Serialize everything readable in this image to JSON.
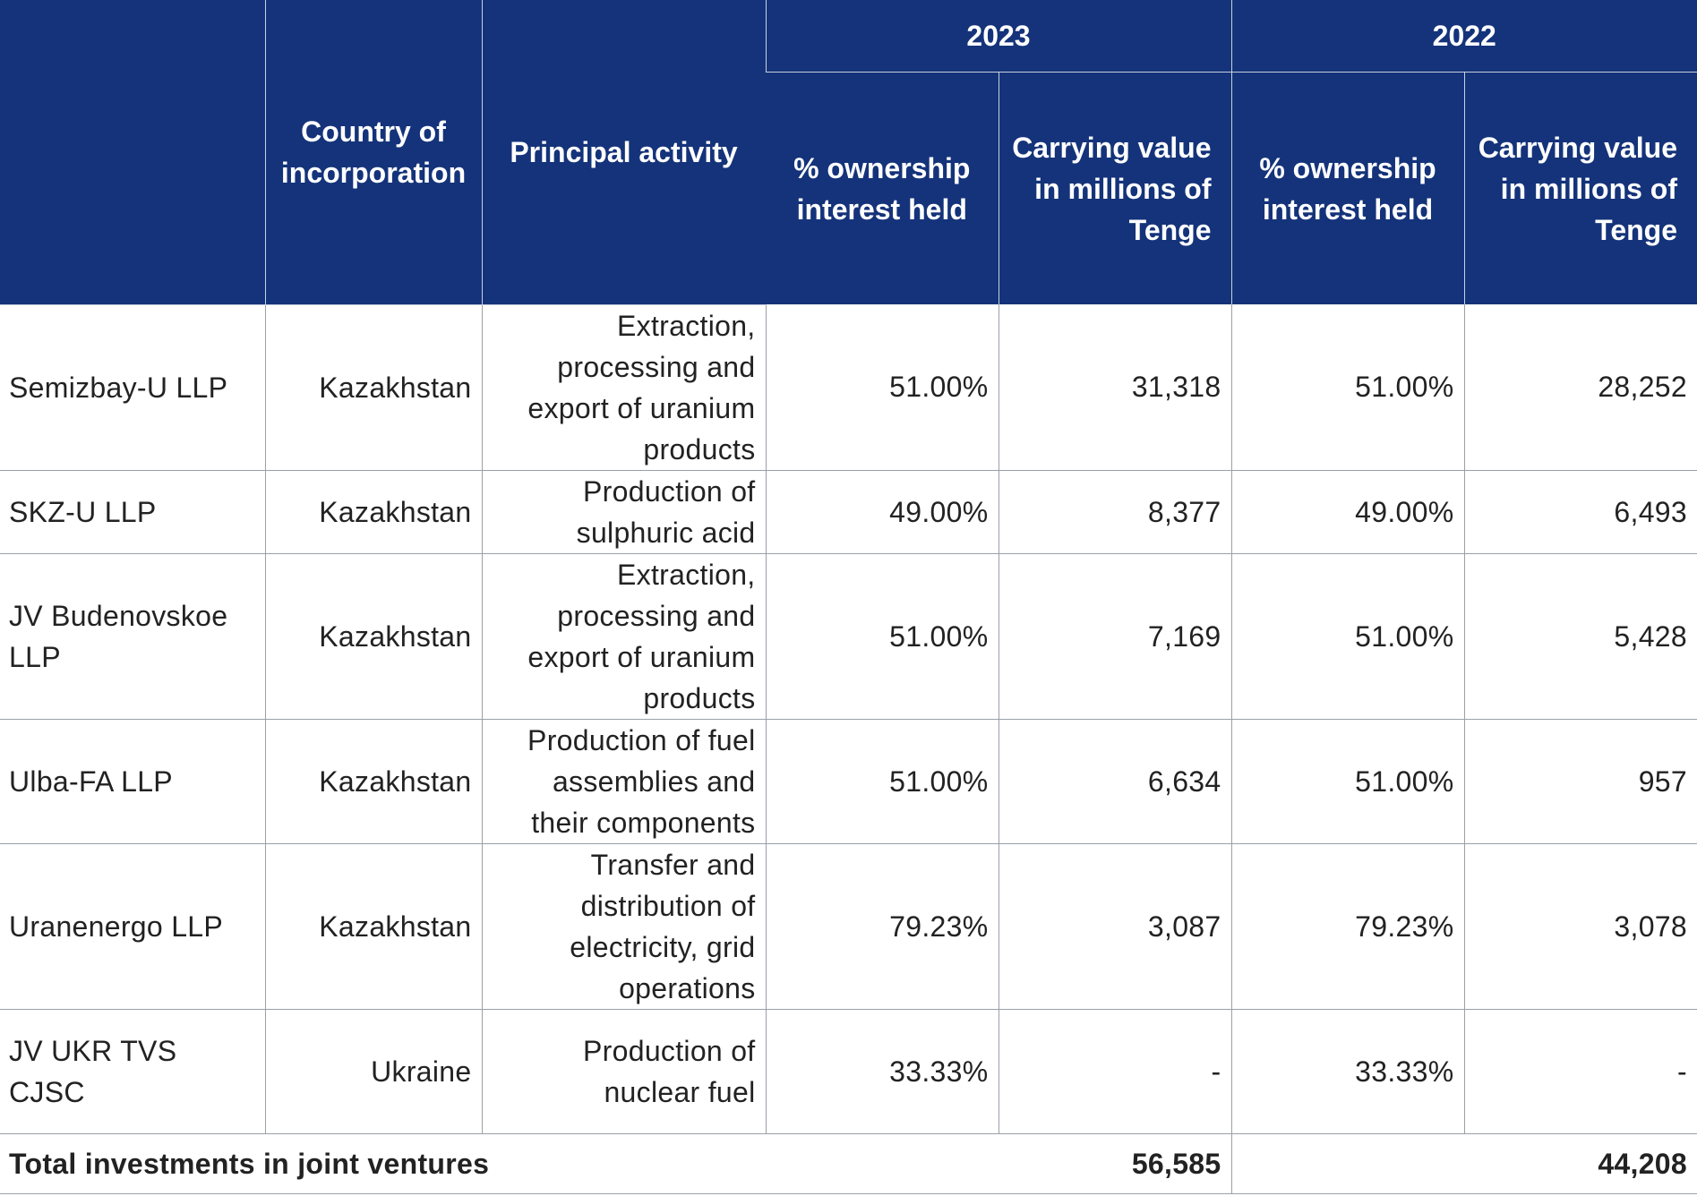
{
  "header": {
    "country": "Country of incorporation",
    "activity": "Principal activity",
    "year_2023": "2023",
    "year_2022": "2022",
    "ownership": "% ownership interest held",
    "carrying": "Carrying value in millions of Tenge"
  },
  "rows": [
    {
      "name": "Semizbay-U LLP",
      "country": "Kazakhstan",
      "activity": "Extraction, processing and export of uranium products",
      "own_2023": "51.00%",
      "value_2023": "31,318",
      "own_2022": "51.00%",
      "value_2022": "28,252"
    },
    {
      "name": "SKZ-U LLP",
      "country": "Kazakhstan",
      "activity": "Production of sulphuric acid",
      "own_2023": "49.00%",
      "value_2023": "8,377",
      "own_2022": "49.00%",
      "value_2022": "6,493"
    },
    {
      "name": "JV Budenovskoe LLP",
      "country": "Kazakhstan",
      "activity": "Extraction, processing and export of uranium products",
      "own_2023": "51.00%",
      "value_2023": "7,169",
      "own_2022": "51.00%",
      "value_2022": "5,428"
    },
    {
      "name": "Ulba-FA LLP",
      "country": "Kazakhstan",
      "activity": "Production of fuel assemblies and their components",
      "own_2023": "51.00%",
      "value_2023": "6,634",
      "own_2022": "51.00%",
      "value_2022": "957"
    },
    {
      "name": "Uranenergo LLP",
      "country": "Kazakhstan",
      "activity": "Transfer and distribution of electricity, grid operations",
      "own_2023": "79.23%",
      "value_2023": "3,087",
      "own_2022": "79.23%",
      "value_2022": "3,078"
    },
    {
      "name": "JV UKR TVS CJSC",
      "country": "Ukraine",
      "activity": "Production of nuclear fuel",
      "own_2023": "33.33%",
      "value_2023": "-",
      "own_2022": "33.33%",
      "value_2022": "-"
    }
  ],
  "total": {
    "label": "Total investments in joint ventures",
    "value_2023": "56,585",
    "value_2022": "44,208"
  }
}
